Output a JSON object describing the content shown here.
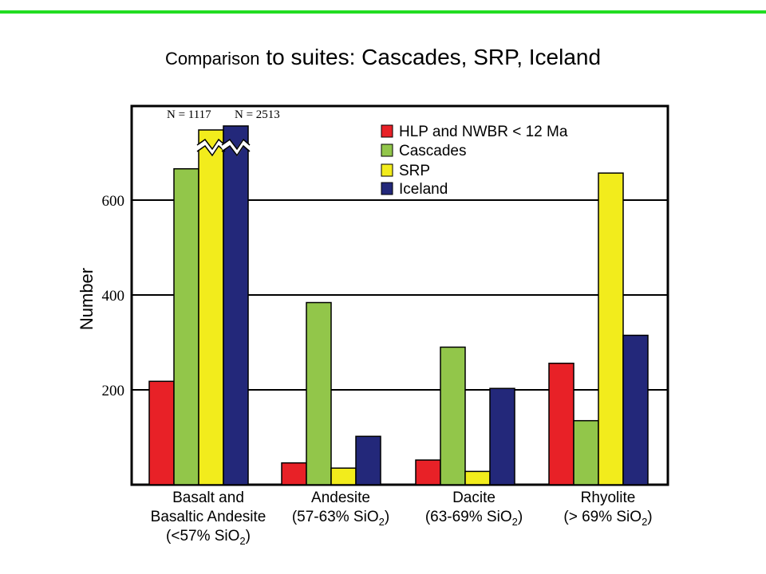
{
  "title": {
    "prefix": "Comparison",
    "rest": " to suites:  Cascades, SRP, Iceland"
  },
  "colors": {
    "accent_rule": "#22dd22",
    "HLP and NWBR < 12 Ma": "#e82127",
    "Cascades": "#92c64a",
    "SRP": "#f2ec1c",
    "Iceland": "#23287a"
  },
  "chart_data": {
    "type": "bar",
    "ylabel": "Number",
    "yticks": [
      200,
      400,
      600
    ],
    "ylim": [
      0,
      780
    ],
    "grid": true,
    "legend_position": "top-right",
    "categories": [
      {
        "lines": [
          "Basalt and",
          "Basaltic Andesite",
          "(<57% SiO|2|)"
        ]
      },
      {
        "lines": [
          "Andesite",
          "(57-63% SiO|2|)"
        ]
      },
      {
        "lines": [
          "Dacite",
          "(63-69% SiO|2|)"
        ]
      },
      {
        "lines": [
          "Rhyolite",
          "(> 69% SiO|2|)"
        ]
      }
    ],
    "series": [
      {
        "name": "HLP and NWBR < 12 Ma",
        "values": [
          218,
          46,
          52,
          256
        ]
      },
      {
        "name": "Cascades",
        "values": [
          666,
          384,
          290,
          135
        ]
      },
      {
        "name": "SRP",
        "values": [
          1117,
          35,
          28,
          657
        ]
      },
      {
        "name": "Iceland",
        "values": [
          2513,
          102,
          203,
          315
        ]
      }
    ],
    "annotations": [
      {
        "text": "N = 1117",
        "category": 0,
        "series": "SRP"
      },
      {
        "text": "N = 2513",
        "category": 0,
        "series": "Iceland"
      }
    ],
    "axis_break": {
      "category": 0,
      "series": [
        "SRP",
        "Iceland"
      ]
    }
  }
}
